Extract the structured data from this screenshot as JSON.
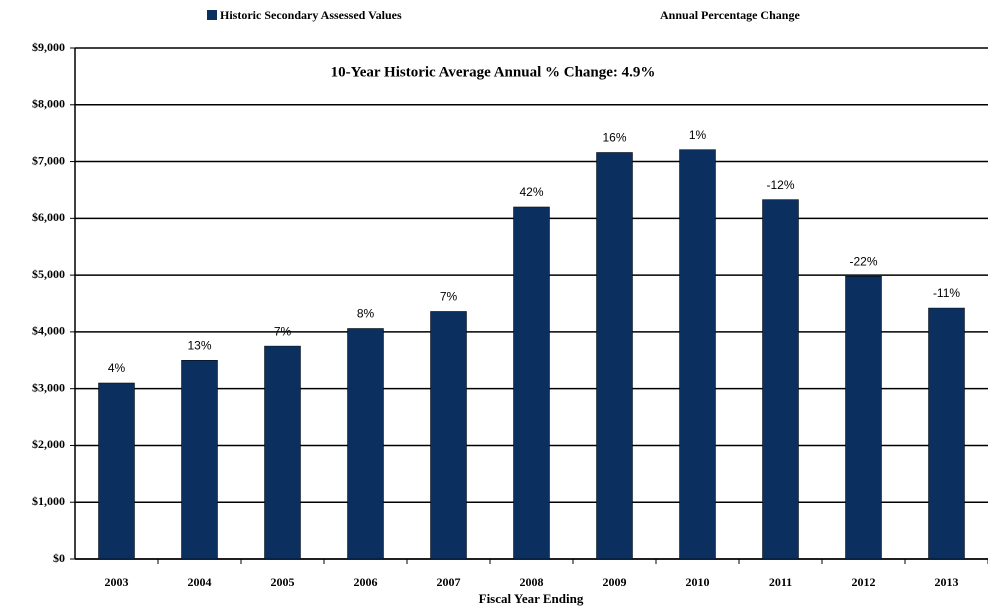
{
  "chart_data": {
    "type": "bar",
    "annotation": "10-Year Historic Average Annual % Change: 4.9%",
    "x_label": "Fiscal Year Ending",
    "categories": [
      "2003",
      "2004",
      "2005",
      "2006",
      "2007",
      "2008",
      "2009",
      "2010",
      "2011",
      "2012",
      "2013"
    ],
    "series": [
      {
        "name": "Historic Secondary Assessed Values",
        "color": "#0b2f5e",
        "values": [
          3100,
          3500,
          3750,
          4060,
          4360,
          6200,
          7160,
          7210,
          6330,
          4980,
          4420
        ]
      },
      {
        "name": "Annual Percentage Change",
        "values": [
          4,
          13,
          7,
          8,
          7,
          42,
          16,
          1,
          -12,
          -22,
          -11
        ],
        "value_labels": [
          "4%",
          "13%",
          "7%",
          "8%",
          "7%",
          "42%",
          "16%",
          "1%",
          "-12%",
          "-22%",
          "-11%"
        ]
      }
    ],
    "ylim": [
      0,
      9000
    ],
    "yticks": [
      {
        "value": 0,
        "label": "$0"
      },
      {
        "value": 1000,
        "label": "$1,000"
      },
      {
        "value": 2000,
        "label": "$2,000"
      },
      {
        "value": 3000,
        "label": "$3,000"
      },
      {
        "value": 4000,
        "label": "$4,000"
      },
      {
        "value": 5000,
        "label": "$5,000"
      },
      {
        "value": 6000,
        "label": "$6,000"
      },
      {
        "value": 7000,
        "label": "$7,000"
      },
      {
        "value": 8000,
        "label": "$8,000"
      },
      {
        "value": 9000,
        "label": "$9,000"
      }
    ],
    "grid": true
  }
}
